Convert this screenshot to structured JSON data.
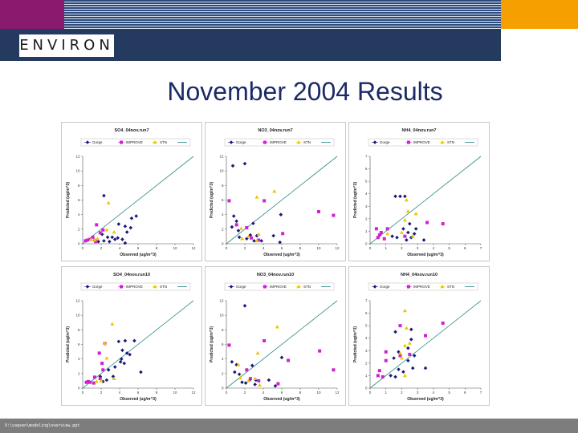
{
  "header": {
    "logo_text": "ENVIRON",
    "colors": {
      "purple": "#8a1a6e",
      "orange": "#f5a000",
      "navy": "#243a5e"
    }
  },
  "slide": {
    "title": "November 2004 Results"
  },
  "footer": {
    "path": "V:\\caqsen\\modeling\\overview.ppt"
  },
  "legend_labels": [
    "Gorge",
    "IMPROVE",
    "STN"
  ],
  "series_colors": {
    "Gorge": "#1a1a7a",
    "IMPROVE": "#d020d0",
    "STN": "#e8c800",
    "line": "#2e8b8b"
  },
  "chart_data": [
    {
      "type": "scatter",
      "title": "SO4_04nov.run7",
      "xlabel": "Observed (ug/m^3)",
      "ylabel": "Predicted (ug/m^3)",
      "xlim": [
        0,
        12
      ],
      "ylim": [
        0,
        12
      ],
      "xticks": [
        0,
        2,
        4,
        6,
        8,
        10,
        12
      ],
      "yticks": [
        0,
        2,
        4,
        6,
        8,
        10,
        12
      ],
      "one_to_one": true,
      "series": [
        {
          "name": "Gorge",
          "marker": "diamond",
          "points": [
            [
              2.3,
              6.6
            ],
            [
              5.8,
              3.8
            ],
            [
              5.3,
              3.5
            ],
            [
              3.9,
              2.7
            ],
            [
              4.6,
              2.4
            ],
            [
              5.2,
              2.2
            ],
            [
              4.8,
              1.6
            ],
            [
              2.1,
              1.3
            ],
            [
              2.7,
              0.9
            ],
            [
              3.2,
              0.9
            ],
            [
              3.5,
              0.6
            ],
            [
              4.3,
              0.6
            ],
            [
              2.3,
              0.4
            ],
            [
              1.3,
              0.5
            ],
            [
              1.7,
              0.3
            ],
            [
              2.9,
              0.3
            ],
            [
              4.6,
              0.1
            ],
            [
              3.8,
              0.8
            ]
          ]
        },
        {
          "name": "IMPROVE",
          "marker": "square",
          "points": [
            [
              1.5,
              2.6
            ],
            [
              2.2,
              1.9
            ],
            [
              1.9,
              1.5
            ],
            [
              0.5,
              0.5
            ],
            [
              0.8,
              0.6
            ],
            [
              1.1,
              0.9
            ],
            [
              0.3,
              0.4
            ],
            [
              1.4,
              0.3
            ]
          ]
        },
        {
          "name": "STN",
          "marker": "triangle",
          "points": [
            [
              2.8,
              5.6
            ],
            [
              3.4,
              1.6
            ],
            [
              2.6,
              1.9
            ],
            [
              1.3,
              0.5
            ],
            [
              0.9,
              0.6
            ],
            [
              1.6,
              0.7
            ]
          ]
        }
      ]
    },
    {
      "type": "scatter",
      "title": "NO3_04nov.run7",
      "xlabel": "Observed (ug/m^3)",
      "ylabel": "Predicted (ug/m^3)",
      "xlim": [
        0,
        12
      ],
      "ylim": [
        0,
        12
      ],
      "xticks": [
        0,
        2,
        4,
        6,
        8,
        10,
        12
      ],
      "yticks": [
        0,
        2,
        4,
        6,
        8,
        10,
        12
      ],
      "one_to_one": true,
      "series": [
        {
          "name": "Gorge",
          "marker": "diamond",
          "points": [
            [
              0.7,
              10.7
            ],
            [
              2.0,
              11.0
            ],
            [
              5.9,
              4.0
            ],
            [
              0.8,
              3.8
            ],
            [
              1.1,
              3.1
            ],
            [
              2.9,
              2.8
            ],
            [
              0.6,
              2.3
            ],
            [
              1.3,
              1.8
            ],
            [
              2.6,
              1.2
            ],
            [
              3.3,
              1.1
            ],
            [
              5.1,
              1.1
            ],
            [
              2.2,
              0.7
            ],
            [
              3.0,
              0.4
            ],
            [
              3.8,
              0.4
            ],
            [
              5.8,
              0.2
            ],
            [
              1.4,
              0.9
            ]
          ]
        },
        {
          "name": "IMPROVE",
          "marker": "square",
          "points": [
            [
              0.3,
              5.9
            ],
            [
              4.1,
              5.9
            ],
            [
              10.0,
              4.4
            ],
            [
              6.1,
              1.4
            ],
            [
              2.2,
              2.2
            ],
            [
              2.7,
              0.8
            ],
            [
              3.5,
              0.5
            ],
            [
              11.6,
              3.9
            ],
            [
              1.1,
              2.6
            ]
          ]
        },
        {
          "name": "STN",
          "marker": "triangle",
          "points": [
            [
              5.2,
              7.2
            ],
            [
              3.3,
              6.4
            ],
            [
              1.7,
              0.7
            ],
            [
              3.5,
              1.3
            ],
            [
              2.4,
              1.0
            ],
            [
              3.3,
              0.4
            ],
            [
              1.6,
              2.1
            ]
          ]
        }
      ]
    },
    {
      "type": "scatter",
      "title": "NH4_04nov.run7",
      "xlabel": "Observed (ug/m^3)",
      "ylabel": "Predicted (ug/m^3)",
      "xlim": [
        0,
        7
      ],
      "ylim": [
        0,
        7
      ],
      "xticks": [
        0,
        1,
        2,
        3,
        4,
        5,
        6,
        7
      ],
      "yticks": [
        0,
        1,
        2,
        3,
        4,
        5,
        6,
        7
      ],
      "one_to_one": true,
      "series": [
        {
          "name": "Gorge",
          "marker": "diamond",
          "points": [
            [
              1.6,
              3.8
            ],
            [
              1.9,
              3.8
            ],
            [
              2.2,
              3.8
            ],
            [
              2.5,
              1.6
            ],
            [
              2.1,
              1.2
            ],
            [
              2.4,
              0.9
            ],
            [
              2.8,
              0.8
            ],
            [
              1.7,
              0.5
            ],
            [
              2.3,
              0.3
            ],
            [
              3.4,
              0.3
            ],
            [
              2.6,
              0.5
            ],
            [
              1.4,
              0.6
            ],
            [
              2.9,
              1.2
            ]
          ]
        },
        {
          "name": "IMPROVE",
          "marker": "square",
          "points": [
            [
              0.4,
              1.2
            ],
            [
              1.1,
              1.2
            ],
            [
              0.7,
              0.9
            ],
            [
              0.6,
              0.7
            ],
            [
              0.5,
              0.5
            ],
            [
              3.6,
              1.7
            ],
            [
              4.6,
              1.6
            ],
            [
              2.2,
              0.6
            ],
            [
              0.9,
              0.4
            ]
          ]
        },
        {
          "name": "STN",
          "marker": "triangle",
          "points": [
            [
              2.3,
              3.5
            ],
            [
              2.9,
              2.4
            ],
            [
              2.4,
              2.6
            ],
            [
              2.2,
              1.9
            ],
            [
              2.0,
              0.9
            ],
            [
              1.1,
              0.8
            ],
            [
              2.7,
              0.6
            ]
          ]
        }
      ]
    },
    {
      "type": "scatter",
      "title": "SO4_04nov.run10",
      "xlabel": "Observed (ug/m^3)",
      "ylabel": "Predicted (ug/m^3)",
      "xlim": [
        0,
        12
      ],
      "ylim": [
        0,
        12
      ],
      "xticks": [
        0,
        2,
        4,
        6,
        8,
        10,
        12
      ],
      "yticks": [
        0,
        2,
        4,
        6,
        8,
        10,
        12
      ],
      "one_to_one": true,
      "series": [
        {
          "name": "Gorge",
          "marker": "diamond",
          "points": [
            [
              3.9,
              6.4
            ],
            [
              4.6,
              6.5
            ],
            [
              5.6,
              6.5
            ],
            [
              4.3,
              5.2
            ],
            [
              4.8,
              4.8
            ],
            [
              5.1,
              4.6
            ],
            [
              4.2,
              4.0
            ],
            [
              4.1,
              3.6
            ],
            [
              3.5,
              2.9
            ],
            [
              2.8,
              2.5
            ],
            [
              3.3,
              1.6
            ],
            [
              2.6,
              1.1
            ],
            [
              1.9,
              1.6
            ],
            [
              2.2,
              0.9
            ],
            [
              6.3,
              2.2
            ],
            [
              4.5,
              3.4
            ]
          ]
        },
        {
          "name": "IMPROVE",
          "marker": "square",
          "points": [
            [
              1.8,
              4.8
            ],
            [
              2.1,
              3.4
            ],
            [
              2.2,
              2.5
            ],
            [
              1.3,
              1.5
            ],
            [
              1.9,
              1.3
            ],
            [
              0.6,
              0.9
            ],
            [
              0.8,
              0.8
            ],
            [
              0.4,
              0.8
            ],
            [
              1.2,
              0.7
            ],
            [
              2.4,
              6.1
            ]
          ]
        },
        {
          "name": "STN",
          "marker": "triangle",
          "points": [
            [
              3.2,
              8.8
            ],
            [
              2.4,
              6.1
            ],
            [
              2.6,
              4.1
            ],
            [
              3.4,
              1.3
            ],
            [
              2.0,
              1.0
            ],
            [
              1.5,
              0.9
            ]
          ]
        }
      ]
    },
    {
      "type": "scatter",
      "title": "NO3_04nov.run10",
      "xlabel": "Observed (ug/m^3)",
      "ylabel": "Predicted (ug/m^3)",
      "xlim": [
        0,
        12
      ],
      "ylim": [
        0,
        12
      ],
      "xticks": [
        0,
        2,
        4,
        6,
        8,
        10,
        12
      ],
      "yticks": [
        0,
        2,
        4,
        6,
        8,
        10,
        12
      ],
      "one_to_one": true,
      "series": [
        {
          "name": "Gorge",
          "marker": "diamond",
          "points": [
            [
              2.0,
              11.3
            ],
            [
              6.0,
              4.2
            ],
            [
              0.6,
              3.6
            ],
            [
              1.1,
              3.2
            ],
            [
              2.8,
              3.1
            ],
            [
              0.9,
              2.2
            ],
            [
              1.4,
              1.9
            ],
            [
              2.5,
              1.1
            ],
            [
              3.2,
              1.1
            ],
            [
              4.6,
              1.1
            ],
            [
              2.1,
              0.7
            ],
            [
              3.1,
              0.5
            ],
            [
              5.3,
              0.3
            ],
            [
              1.7,
              0.8
            ]
          ]
        },
        {
          "name": "IMPROVE",
          "marker": "square",
          "points": [
            [
              0.3,
              5.9
            ],
            [
              4.1,
              6.5
            ],
            [
              10.1,
              5.1
            ],
            [
              6.7,
              3.8
            ],
            [
              2.2,
              2.5
            ],
            [
              2.6,
              1.3
            ],
            [
              3.5,
              1.0
            ],
            [
              11.6,
              2.5
            ],
            [
              5.6,
              0.6
            ]
          ]
        },
        {
          "name": "STN",
          "marker": "triangle",
          "points": [
            [
              5.5,
              8.4
            ],
            [
              3.4,
              4.8
            ],
            [
              1.5,
              1.4
            ],
            [
              3.1,
              1.3
            ],
            [
              2.4,
              1.0
            ],
            [
              3.6,
              0.4
            ],
            [
              1.3,
              3.2
            ]
          ]
        }
      ]
    },
    {
      "type": "scatter",
      "title": "NH4_04nov.run10",
      "xlabel": "Observed (ug/m^3)",
      "ylabel": "Predicted (ug/m^3)",
      "xlim": [
        0,
        7
      ],
      "ylim": [
        0,
        7
      ],
      "xticks": [
        0,
        1,
        2,
        3,
        4,
        5,
        6,
        7
      ],
      "yticks": [
        0,
        1,
        2,
        3,
        4,
        5,
        6,
        7
      ],
      "one_to_one": true,
      "series": [
        {
          "name": "Gorge",
          "marker": "diamond",
          "points": [
            [
              1.6,
              4.5
            ],
            [
              2.6,
              4.7
            ],
            [
              2.6,
              3.9
            ],
            [
              2.4,
              3.2
            ],
            [
              1.8,
              2.9
            ],
            [
              1.5,
              2.4
            ],
            [
              2.4,
              2.2
            ],
            [
              2.7,
              1.6
            ],
            [
              2.1,
              1.3
            ],
            [
              1.3,
              1.0
            ],
            [
              1.6,
              0.9
            ],
            [
              3.5,
              1.6
            ],
            [
              2.8,
              2.6
            ],
            [
              1.8,
              1.5
            ]
          ]
        },
        {
          "name": "IMPROVE",
          "marker": "square",
          "points": [
            [
              1.9,
              5.0
            ],
            [
              4.6,
              5.2
            ],
            [
              3.5,
              4.2
            ],
            [
              1.0,
              2.9
            ],
            [
              0.6,
              1.4
            ],
            [
              0.5,
              1.0
            ],
            [
              0.8,
              0.9
            ],
            [
              1.0,
              2.2
            ],
            [
              1.9,
              2.6
            ],
            [
              2.5,
              2.7
            ]
          ]
        },
        {
          "name": "STN",
          "marker": "triangle",
          "points": [
            [
              2.2,
              6.2
            ],
            [
              2.3,
              4.8
            ],
            [
              2.2,
              3.4
            ],
            [
              1.9,
              2.8
            ],
            [
              2.0,
              2.4
            ],
            [
              2.2,
              1.0
            ],
            [
              2.5,
              3.6
            ]
          ]
        }
      ]
    }
  ]
}
